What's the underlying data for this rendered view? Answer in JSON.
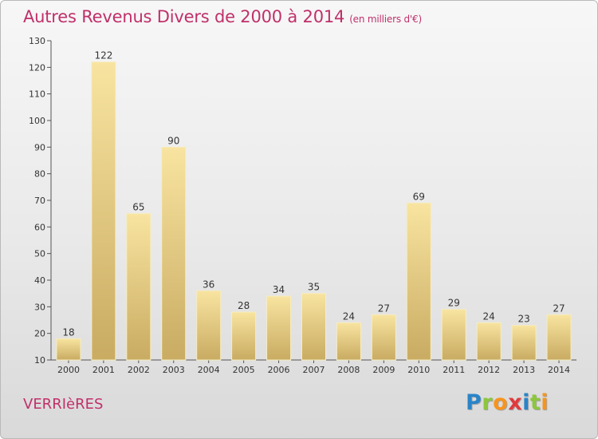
{
  "title": "Autres Revenus Divers de 2000 à 2014",
  "unit": "(en milliers d'€)",
  "commune": "VERRIèRES",
  "logo": {
    "letters": [
      "P",
      "r",
      "o",
      "x",
      "i",
      "t",
      "i"
    ],
    "colors": [
      "#2a84c8",
      "#8cc63f",
      "#f7941d",
      "#e03a3e",
      "#2a84c8",
      "#8cc63f",
      "#f7941d"
    ]
  },
  "colors": {
    "title": "#c0306a",
    "bar_top": "#f8e4a0",
    "bar_bottom": "#c9ab62",
    "bar_edge": "#f7ecc0",
    "axis": "#555555",
    "grid": "#cccccc"
  },
  "chart_data": {
    "type": "bar",
    "categories": [
      "2000",
      "2001",
      "2002",
      "2003",
      "2004",
      "2005",
      "2006",
      "2007",
      "2008",
      "2009",
      "2010",
      "2011",
      "2012",
      "2013",
      "2014"
    ],
    "values": [
      18,
      122,
      65,
      90,
      36,
      28,
      34,
      35,
      24,
      27,
      69,
      29,
      24,
      23,
      27
    ],
    "title": "Autres Revenus Divers de 2000 à 2014",
    "xlabel": "",
    "ylabel": "",
    "ylim": [
      10,
      130
    ],
    "yticks": [
      10,
      20,
      30,
      40,
      50,
      60,
      70,
      80,
      90,
      100,
      110,
      120,
      130
    ],
    "grid": false,
    "data_labels": true
  }
}
